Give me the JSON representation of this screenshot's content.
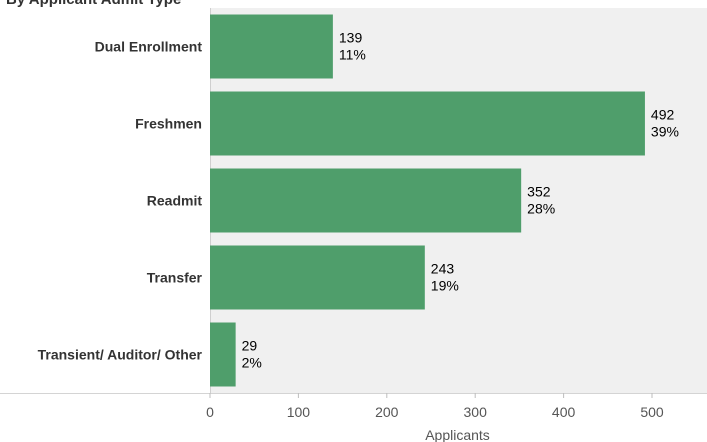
{
  "title": "By Applicant Admit Type",
  "chart_data": {
    "type": "bar",
    "orientation": "horizontal",
    "title": "By Applicant Admit Type",
    "xlabel": "Applicants",
    "ylabel": "",
    "categories": [
      "Dual Enrollment",
      "Freshmen",
      "Readmit",
      "Transfer",
      "Transient/ Auditor/ Other"
    ],
    "values": [
      139,
      492,
      352,
      243,
      29
    ],
    "percent_labels": [
      "11%",
      "39%",
      "28%",
      "19%",
      "2%"
    ],
    "xlim": [
      0,
      560
    ],
    "xticks": [
      0,
      100,
      200,
      300,
      400,
      500
    ],
    "grid": false,
    "legend": "none",
    "colors": {
      "bar": "#4f9e6b",
      "plot_bg": "#f0f0f0"
    }
  }
}
